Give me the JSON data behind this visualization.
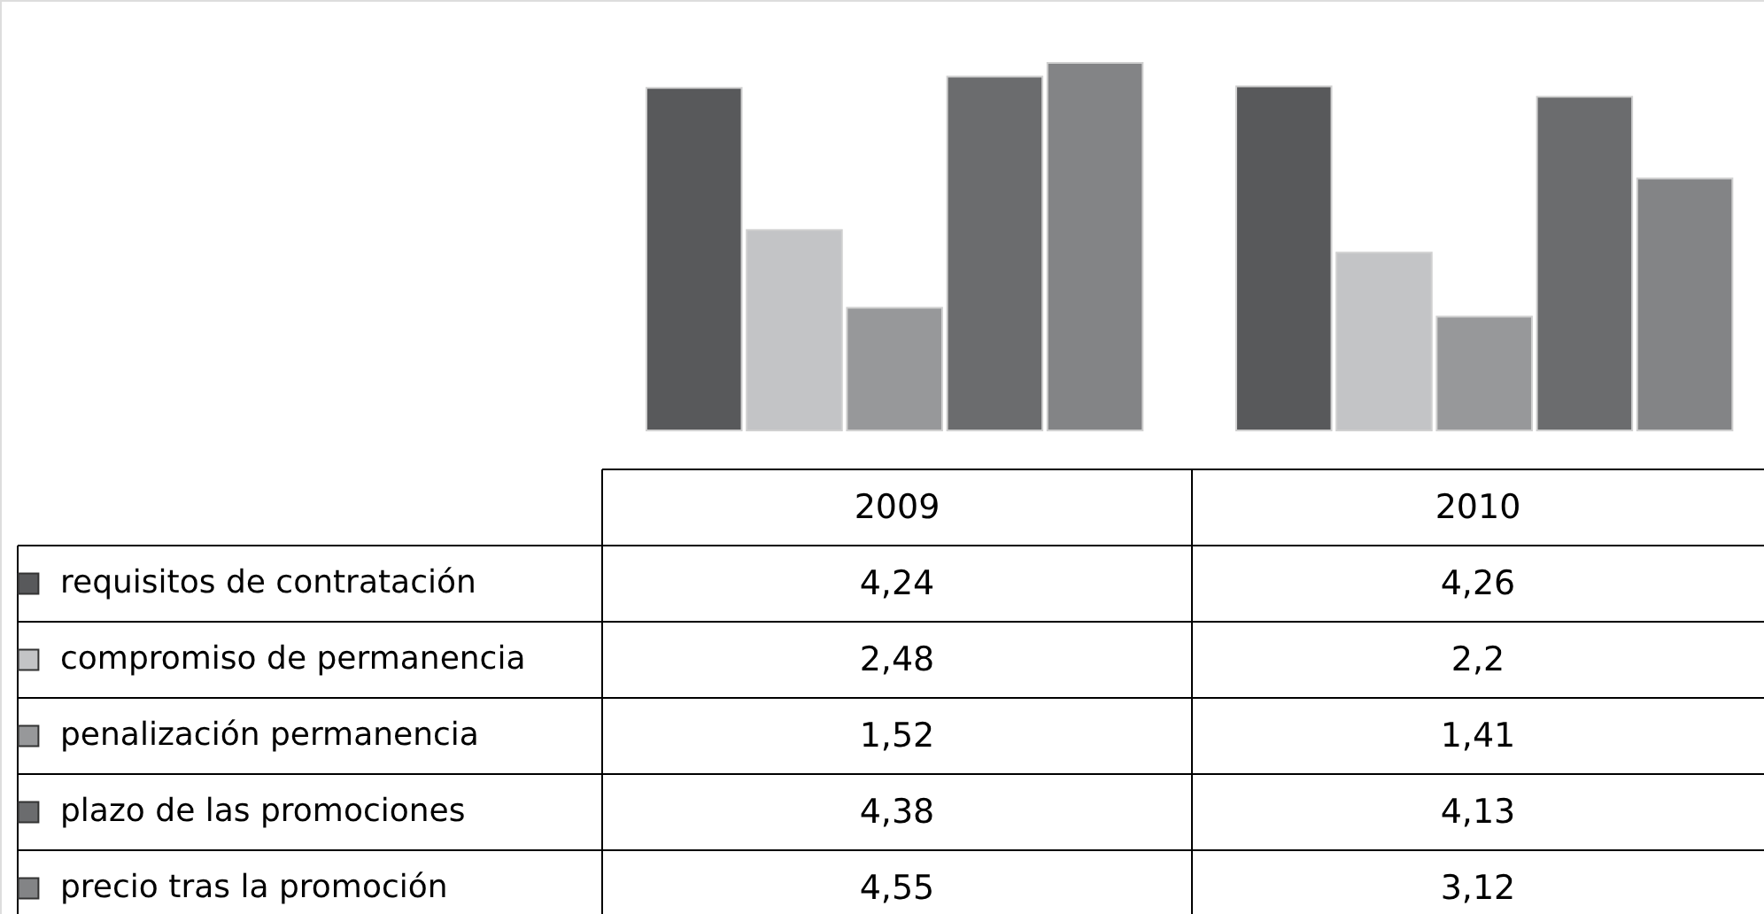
{
  "chart_data": {
    "type": "bar",
    "categories": [
      "2009",
      "2010"
    ],
    "legend": "bottom",
    "series": [
      {
        "name": "requisitos de contratación",
        "color": "#58595b",
        "values": [
          4.24,
          4.26
        ],
        "value_labels": [
          "4,24",
          "4,26"
        ]
      },
      {
        "name": "compromiso de permanencia",
        "color": "#c3c4c6",
        "values": [
          2.48,
          2.2
        ],
        "value_labels": [
          "2,48",
          "2,2"
        ]
      },
      {
        "name": "penalización permanencia",
        "color": "#97989a",
        "values": [
          1.52,
          1.41
        ],
        "value_labels": [
          "1,52",
          "1,41"
        ]
      },
      {
        "name": "plazo de las promociones",
        "color": "#6b6c6e",
        "values": [
          4.38,
          4.13
        ],
        "value_labels": [
          "4,38",
          "4,13"
        ]
      },
      {
        "name": "precio tras la promoción",
        "color": "#838486",
        "values": [
          4.55,
          3.12
        ],
        "value_labels": [
          "4,55",
          "3,12"
        ]
      }
    ]
  }
}
